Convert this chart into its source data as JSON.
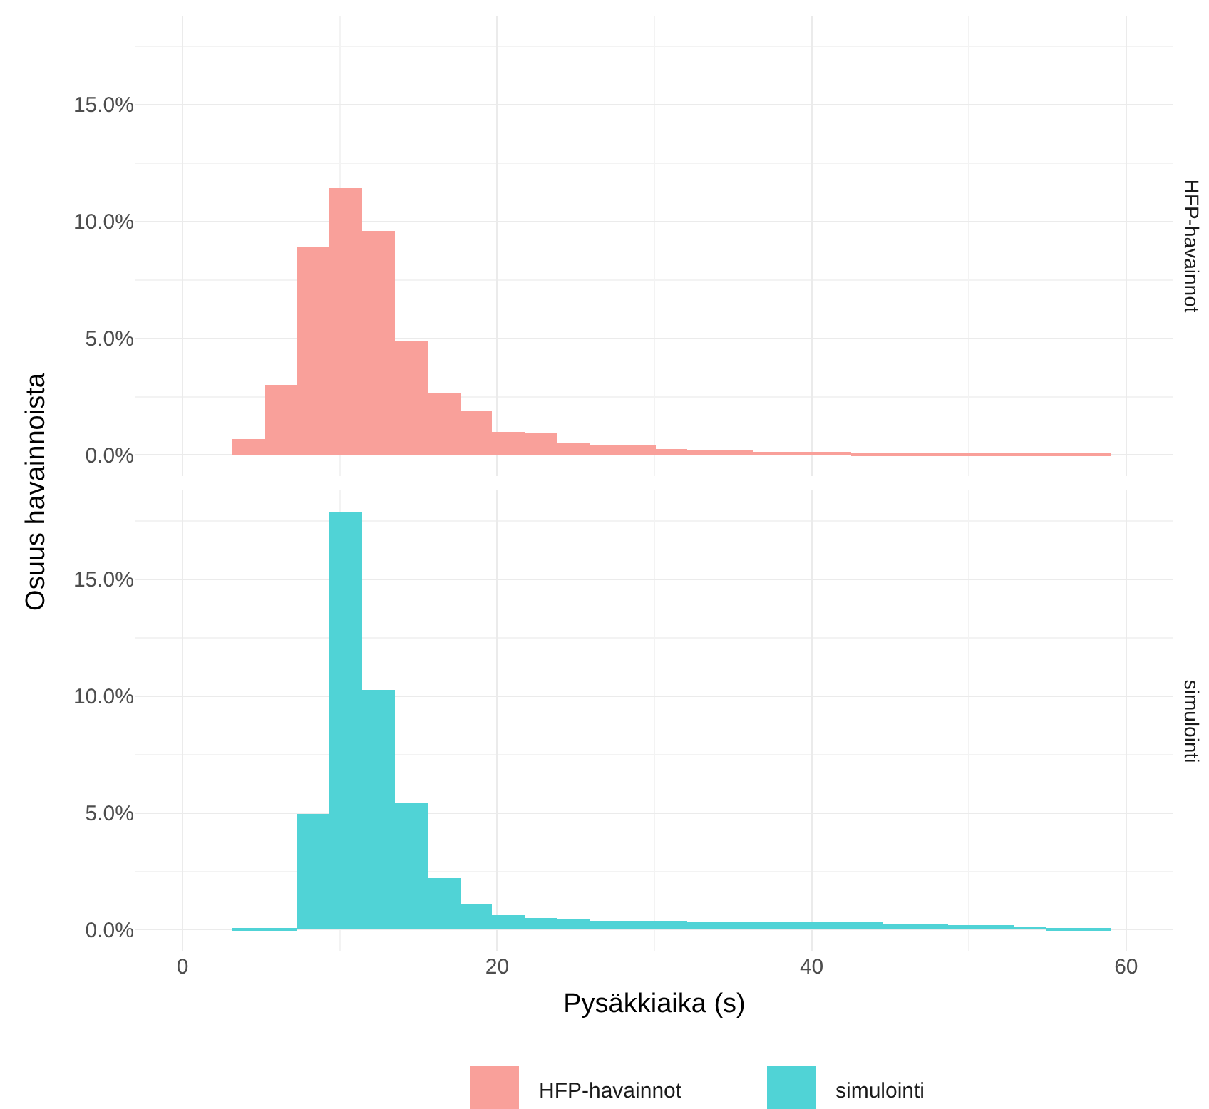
{
  "chart_data": [
    {
      "type": "histogram",
      "ylabel": "Osuus havainnoista",
      "bins": [
        3.14,
        5.21,
        7.28,
        9.35,
        11.42,
        13.49,
        15.56,
        17.63,
        19.7,
        21.77,
        23.84,
        25.91,
        27.98,
        30.05,
        32.12,
        34.19,
        36.26,
        38.33,
        40.4,
        42.47,
        44.54,
        46.61,
        48.68,
        50.75,
        52.82,
        54.89,
        56.96,
        59.03
      ],
      "series": [
        {
          "name": "HFP-havainnot",
          "color": "#f9a09a",
          "values": [
            0.7,
            3.0,
            8.95,
            11.45,
            9.6,
            4.88,
            2.65,
            1.93,
            0.98,
            0.91,
            0.53,
            0.47,
            0.47,
            0.27,
            0.18,
            0.18,
            0.14,
            0.14,
            0.14,
            0.1,
            0.1,
            0.1,
            0.06,
            0.06,
            0.06,
            0.06,
            0.06
          ]
        }
      ],
      "xlim": [
        -3,
        63
      ],
      "xticks": [
        0,
        20,
        40,
        60
      ],
      "ylim": [
        -0.9,
        18.8
      ],
      "yticks": [
        {
          "value": 0,
          "label": "0.0%"
        },
        {
          "value": 5,
          "label": "5.0%"
        },
        {
          "value": 10,
          "label": "10.0%"
        },
        {
          "value": 15,
          "label": "15.0%"
        }
      ],
      "tick_labels": "y",
      "grid": true,
      "legend": "bottom"
    },
    {
      "type": "histogram",
      "xlabel": "Pysäkkiaika (s)",
      "bins": [
        3.14,
        5.21,
        7.28,
        9.35,
        11.42,
        13.49,
        15.56,
        17.63,
        19.7,
        21.77,
        23.84,
        25.91,
        27.98,
        30.05,
        32.12,
        34.19,
        36.26,
        38.33,
        40.4,
        42.47,
        44.54,
        46.61,
        48.68,
        50.75,
        52.82,
        54.89,
        56.96,
        59.03
      ],
      "series": [
        {
          "name": "simulointi",
          "color": "#50d3d6",
          "values": [
            0.04,
            0.04,
            4.98,
            17.87,
            10.27,
            5.45,
            2.24,
            1.14,
            0.65,
            0.53,
            0.45,
            0.41,
            0.37,
            0.37,
            0.33,
            0.33,
            0.33,
            0.31,
            0.31,
            0.31,
            0.27,
            0.24,
            0.2,
            0.18,
            0.14,
            0.1,
            0.08
          ]
        }
      ],
      "xlim": [
        -3,
        63
      ],
      "xticks": [
        0,
        20,
        40,
        60
      ],
      "ylim": [
        -0.9,
        18.8
      ],
      "yticks": [
        {
          "value": 0,
          "label": "0.0%"
        },
        {
          "value": 5,
          "label": "5.0%"
        },
        {
          "value": 10,
          "label": "10.0%"
        },
        {
          "value": 15,
          "label": "15.0%"
        }
      ],
      "grid": true,
      "legend": "bottom"
    }
  ]
}
